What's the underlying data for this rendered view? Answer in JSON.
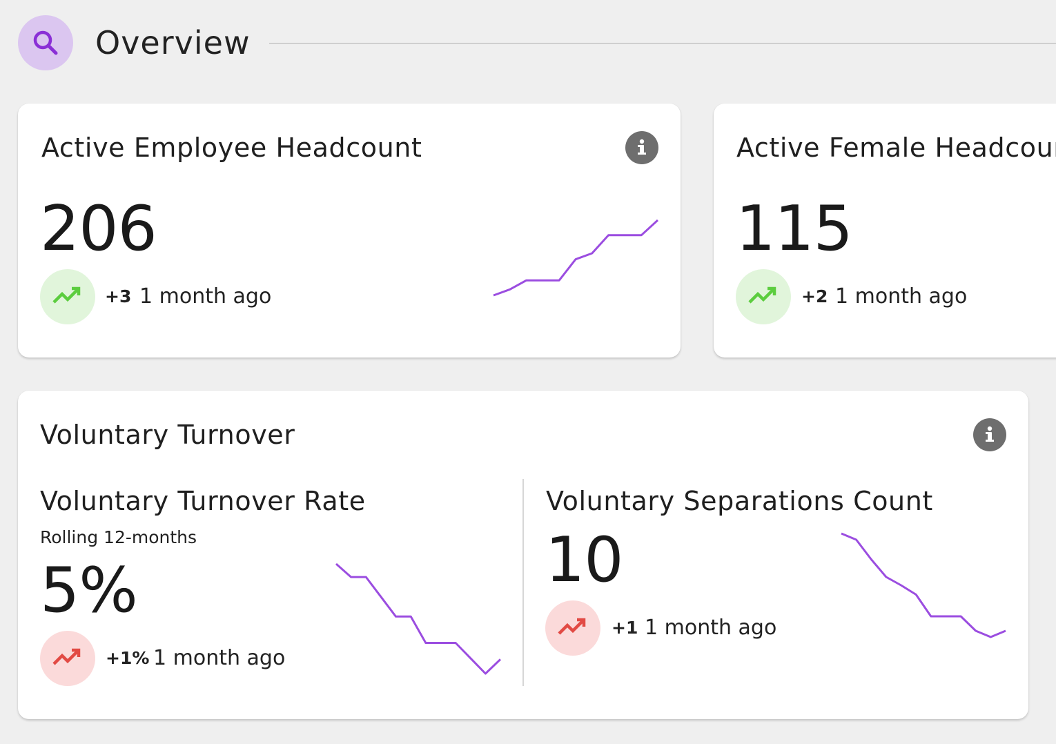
{
  "header": {
    "title": "Overview",
    "search_icon": "search-icon"
  },
  "colors": {
    "background": "#efefef",
    "accent_purple": "#9b4de0",
    "search_bg": "#dbc6f0",
    "trend_good": "#5ccd3f",
    "trend_good_bg": "#e1f5db",
    "trend_bad": "#e24a44",
    "trend_bad_bg": "#fbdada",
    "info_icon": "#6e6e6e"
  },
  "cards": [
    {
      "title": "Active Employee Headcount",
      "value": "206",
      "delta": "+3",
      "period": "1 month ago",
      "trend": "up-good",
      "info_icon": "info-icon",
      "sparkline": [
        0.0,
        0.08,
        0.2,
        0.2,
        0.2,
        0.48,
        0.56,
        0.8,
        0.8,
        0.8,
        1.0
      ]
    },
    {
      "title": "Active Female Headcount",
      "value": "115",
      "delta": "+2",
      "period": "1 month ago",
      "trend": "up-good"
    }
  ],
  "turnover": {
    "title": "Voluntary Turnover",
    "info_icon": "info-icon",
    "rate": {
      "title": "Voluntary Turnover Rate",
      "subtitle": "Rolling 12-months",
      "value": "5%",
      "delta": "+1%",
      "period": "1 month ago",
      "trend": "up-bad",
      "sparkline": [
        1.0,
        0.88,
        0.88,
        0.7,
        0.52,
        0.52,
        0.28,
        0.28,
        0.28,
        0.14,
        0.0,
        0.13
      ]
    },
    "separations": {
      "title": "Voluntary Separations Count",
      "value": "10",
      "delta": "+1",
      "period": "1 month ago",
      "trend": "up-bad",
      "sparkline": [
        1.0,
        0.94,
        0.75,
        0.58,
        0.5,
        0.41,
        0.2,
        0.2,
        0.2,
        0.06,
        0.0,
        0.06
      ]
    }
  }
}
